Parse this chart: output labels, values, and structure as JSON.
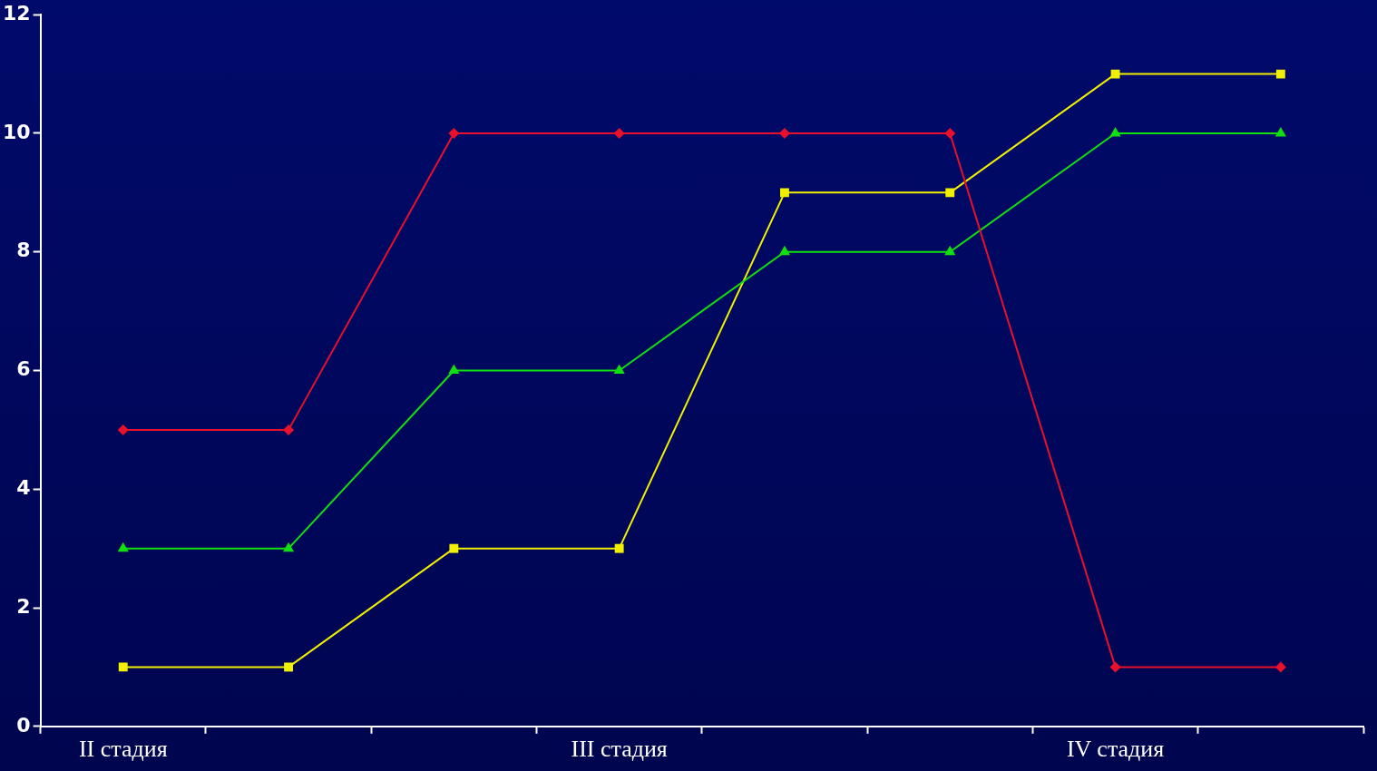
{
  "chart_data": {
    "type": "line",
    "categories": [
      "II стадия",
      null,
      null,
      "III стадия",
      null,
      null,
      "IV стадия",
      null
    ],
    "series": [
      {
        "color": "#e8102a",
        "marker": "diamond",
        "values": [
          5,
          5,
          10,
          10,
          10,
          10,
          1,
          1
        ]
      },
      {
        "color": "#10e010",
        "marker": "triangle",
        "values": [
          3,
          3,
          6,
          6,
          8,
          8,
          10,
          10
        ]
      },
      {
        "color": "#f0f000",
        "marker": "square",
        "values": [
          1,
          1,
          3,
          3,
          9,
          9,
          11,
          11
        ]
      }
    ],
    "ylim": [
      0,
      12
    ],
    "yticks": [
      0,
      2,
      4,
      6,
      8,
      10,
      12
    ],
    "legend": false,
    "line_style": "solid"
  }
}
